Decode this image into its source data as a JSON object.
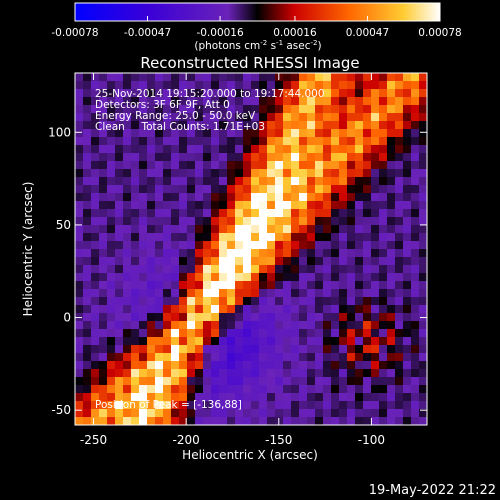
{
  "chart_data": {
    "type": "heatmap",
    "title": "Reconstructed RHESSI Image",
    "xlabel": "Heliocentric X (arcsec)",
    "ylabel": "Heliocentric Y (arcsec)",
    "xlim": [
      -260,
      -70
    ],
    "ylim": [
      -58,
      132
    ],
    "xticks": [
      -250,
      -200,
      -150,
      -100
    ],
    "yticks": [
      -50,
      0,
      50,
      100
    ],
    "colorbar": {
      "range": [
        -0.00078,
        0.00078
      ],
      "ticks": [
        "-0.00078",
        "-0.00047",
        "-0.00016",
        "0.00016",
        "0.00047",
        "0.00078"
      ],
      "unit_label_parts": [
        "(photons cm",
        "-2",
        " s",
        "-1",
        " asec",
        "-2",
        ")"
      ]
    },
    "annotations": [
      "25-Nov-2014 19:15:20.000 to 19:17:44.000",
      "Detectors: 3F 6F 9F, Att 0",
      "Energy Range: 25.0 - 50.0 keV",
      "Clean     Total Counts: 1.71E+03"
    ],
    "peak_label": "Position of Peak = [-136,88]",
    "peak_position": [
      -136,
      88
    ]
  },
  "footer": {
    "timestamp": "19-May-2022 21:22"
  }
}
